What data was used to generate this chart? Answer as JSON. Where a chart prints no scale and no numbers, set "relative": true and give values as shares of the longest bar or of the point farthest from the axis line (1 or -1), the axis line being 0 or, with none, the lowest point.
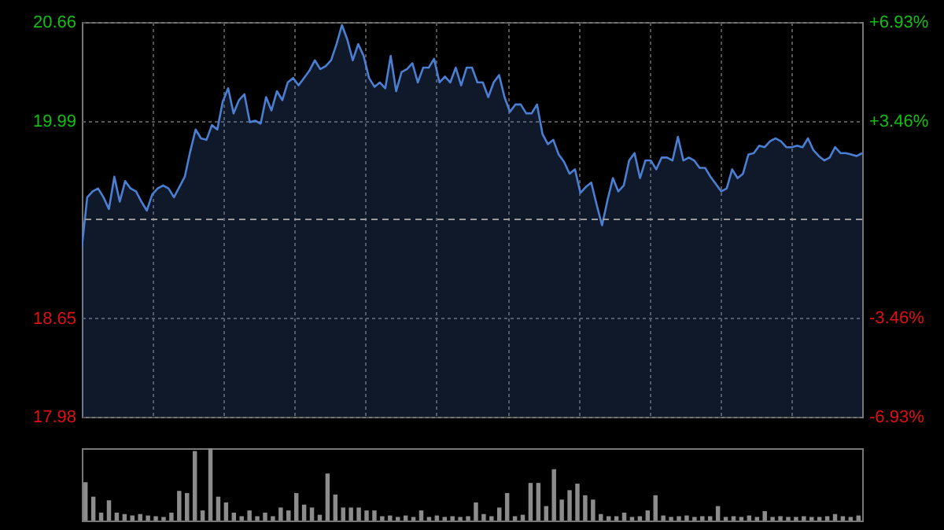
{
  "chart_data": [
    {
      "type": "area",
      "categories": [
        null,
        null,
        null,
        null,
        null,
        null,
        null,
        null,
        null,
        null,
        null,
        null,
        null,
        null,
        null,
        null,
        null,
        null,
        null,
        null,
        null,
        null,
        null,
        null,
        null,
        null,
        null,
        null,
        null,
        null,
        null,
        null,
        null,
        null,
        null,
        null,
        null,
        null,
        null,
        null,
        null,
        null,
        null,
        null,
        null,
        null,
        null,
        null,
        null,
        null,
        null,
        null,
        null,
        null,
        null,
        null,
        null,
        null,
        null,
        null,
        null,
        null,
        null,
        null,
        null,
        null,
        null,
        null,
        null,
        null,
        null,
        null,
        null,
        null,
        null,
        null,
        null,
        null,
        null,
        null,
        null,
        null,
        null,
        null,
        null,
        null,
        null,
        null,
        null,
        null,
        null,
        null,
        null,
        null,
        null,
        null,
        null,
        null,
        null,
        null,
        null,
        null,
        null,
        null,
        null,
        null,
        null,
        null,
        null,
        null,
        null,
        null,
        null,
        null,
        null,
        null,
        null,
        null,
        null,
        null,
        null,
        null,
        null,
        null,
        null,
        null,
        null,
        null,
        null,
        null,
        null,
        null,
        null,
        null,
        null,
        null,
        null,
        null,
        null,
        null,
        null,
        null,
        null,
        null,
        null
      ],
      "series": [
        {
          "color": "#4a7fd4",
          "values": [
            19.13,
            19.47,
            19.51,
            19.53,
            19.47,
            19.39,
            19.61,
            19.44,
            19.58,
            19.53,
            19.51,
            19.44,
            19.38,
            19.49,
            19.53,
            19.55,
            19.53,
            19.47,
            19.54,
            19.61,
            19.78,
            19.93,
            19.87,
            19.86,
            19.96,
            19.93,
            20.12,
            20.21,
            20.04,
            20.13,
            20.17,
            19.98,
            19.99,
            19.97,
            20.15,
            20.06,
            20.19,
            20.13,
            20.25,
            20.28,
            20.23,
            20.28,
            20.33,
            20.4,
            20.34,
            20.36,
            20.4,
            20.51,
            20.64,
            20.54,
            20.4,
            20.51,
            20.43,
            20.28,
            20.22,
            20.25,
            20.21,
            20.43,
            20.19,
            20.32,
            20.34,
            20.38,
            20.25,
            20.35,
            20.35,
            20.41,
            20.25,
            20.29,
            20.25,
            20.35,
            20.23,
            20.35,
            20.35,
            20.25,
            20.25,
            20.15,
            20.25,
            20.3,
            20.15,
            20.05,
            20.1,
            20.1,
            20.04,
            20.04,
            20.1,
            19.9,
            19.83,
            19.86,
            19.76,
            19.71,
            19.63,
            19.66,
            19.5,
            19.54,
            19.57,
            19.42,
            19.28,
            19.45,
            19.6,
            19.51,
            19.55,
            19.72,
            19.77,
            19.6,
            19.72,
            19.72,
            19.66,
            19.74,
            19.74,
            19.72,
            19.88,
            19.72,
            19.74,
            19.72,
            19.67,
            19.67,
            19.61,
            19.56,
            19.51,
            19.53,
            19.66,
            19.6,
            19.63,
            19.76,
            19.77,
            19.82,
            19.81,
            19.85,
            19.87,
            19.85,
            19.81,
            19.81,
            19.82,
            19.81,
            19.87,
            19.79,
            19.75,
            19.72,
            19.74,
            19.81,
            19.77,
            19.77,
            19.76,
            19.75,
            19.77
          ]
        }
      ],
      "ylim": [
        17.98,
        20.66
      ],
      "yticks": [
        17.98,
        18.65,
        19.99,
        20.66
      ],
      "y2lim": [
        -6.93,
        6.93
      ],
      "y2ticks": [
        {
          "value": -6.93,
          "label": "-6.93%"
        },
        {
          "value": -3.46,
          "label": "-3.46%"
        },
        {
          "value": 3.46,
          "label": "+3.46%"
        },
        {
          "value": 6.93,
          "label": "+6.93%"
        }
      ],
      "ref_lines": [
        {
          "axis": "y",
          "value": 19.32
        }
      ],
      "grid": true,
      "tick_labels": "y"
    },
    {
      "type": "bar",
      "relative": true,
      "color": "#8c8c8c",
      "tick_labels": false,
      "categories": [
        null,
        null,
        null,
        null,
        null,
        null,
        null,
        null,
        null,
        null,
        null,
        null,
        null,
        null,
        null,
        null,
        null,
        null,
        null,
        null,
        null,
        null,
        null,
        null,
        null,
        null,
        null,
        null,
        null,
        null,
        null,
        null,
        null,
        null,
        null,
        null,
        null,
        null,
        null,
        null,
        null,
        null,
        null,
        null,
        null,
        null,
        null,
        null,
        null,
        null,
        null,
        null,
        null,
        null,
        null,
        null,
        null,
        null,
        null,
        null,
        null,
        null,
        null,
        null,
        null,
        null,
        null,
        null,
        null,
        null,
        null,
        null,
        null,
        null,
        null,
        null,
        null,
        null,
        null,
        null,
        null,
        null,
        null,
        null,
        null,
        null,
        null,
        null,
        null,
        null,
        null,
        null,
        null,
        null,
        null,
        null,
        null,
        null,
        null,
        null
      ],
      "values": [
        0.53,
        0.33,
        0.11,
        0.28,
        0.11,
        0.09,
        0.07,
        0.09,
        0.07,
        0.06,
        0.05,
        0.11,
        0.41,
        0.38,
        0.96,
        0.14,
        1,
        0.33,
        0.25,
        0.11,
        0.06,
        0.14,
        0.06,
        0.11,
        0.06,
        0.18,
        0.14,
        0.38,
        0.22,
        0.18,
        0.08,
        0.65,
        0.36,
        0.18,
        0.18,
        0.18,
        0.14,
        0.14,
        0.06,
        0.07,
        0.05,
        0.07,
        0.05,
        0.14,
        0.05,
        0.07,
        0.05,
        0.06,
        0.05,
        0.06,
        0.25,
        0.09,
        0.06,
        0.18,
        0.38,
        0.06,
        0.08,
        0.52,
        0.52,
        0.2,
        0.71,
        0.29,
        0.42,
        0.51,
        0.35,
        0.29,
        0.09,
        0.06,
        0.06,
        0.11,
        0.05,
        0.06,
        0.14,
        0.35,
        0.07,
        0.05,
        0.06,
        0.07,
        0.05,
        0.06,
        0.06,
        0.2,
        0.05,
        0.06,
        0.05,
        0.07,
        0.05,
        0.13,
        0.05,
        0.06,
        0.05,
        0.05,
        0.06,
        0.05,
        0.05,
        0.06,
        0.09,
        0.06,
        0.05,
        0.07
      ]
    }
  ]
}
